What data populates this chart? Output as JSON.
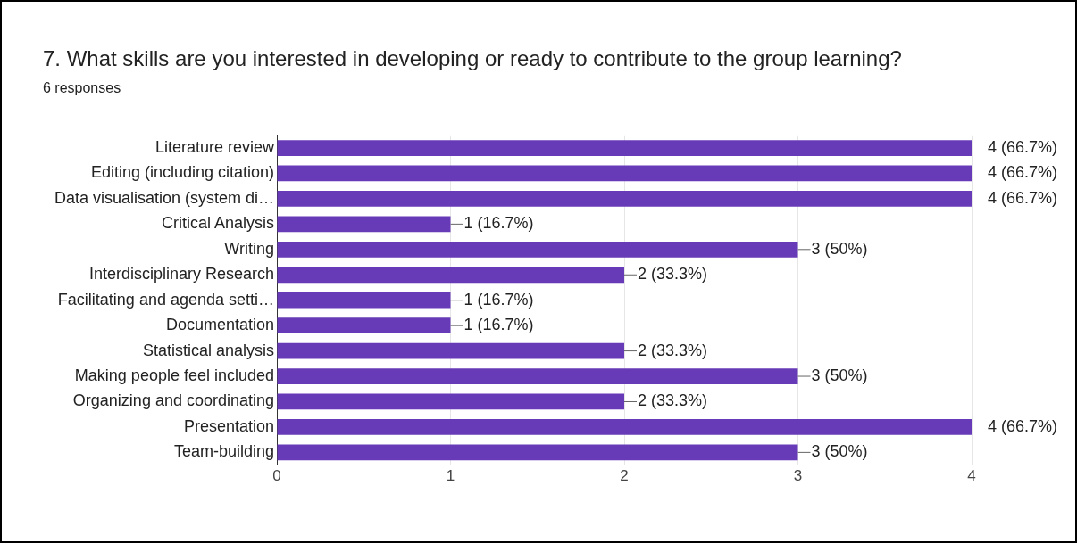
{
  "chart_data": {
    "type": "bar",
    "orientation": "horizontal",
    "title": "7. What skills are you interested in developing or ready to contribute to the group learning?",
    "subtitle": "6 responses",
    "categories": [
      "Literature review",
      "Editing (including citation)",
      "Data visualisation (system di…",
      "Critical Analysis",
      "Writing",
      "Interdisciplinary Research",
      "Facilitating and agenda setti…",
      "Documentation",
      "Statistical analysis",
      "Making people feel included",
      "Organizing and coordinating",
      "Presentation",
      "Team-building"
    ],
    "values": [
      4,
      4,
      4,
      1,
      3,
      2,
      1,
      1,
      2,
      3,
      2,
      4,
      3
    ],
    "value_labels": [
      "4 (66.7%)",
      "4 (66.7%)",
      "4 (66.7%)",
      "1 (16.7%)",
      "3 (50%)",
      "2 (33.3%)",
      "1 (16.7%)",
      "1 (16.7%)",
      "2 (33.3%)",
      "3 (50%)",
      "2 (33.3%)",
      "4 (66.7%)",
      "3 (50%)"
    ],
    "color": "#673ab7",
    "xlim": [
      0,
      4
    ],
    "xticks": [
      0,
      1,
      2,
      3,
      4
    ],
    "grid": "x",
    "legend": false
  }
}
